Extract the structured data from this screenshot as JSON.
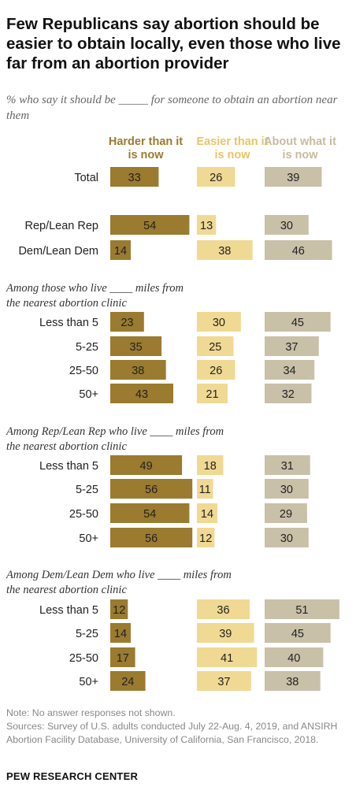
{
  "title": "Few Republicans say abortion should be easier to obtain locally, even those who live far from an abortion provider",
  "subtitle": "% who say it should be _____ for someone to obtain an abortion near them",
  "notes": {
    "note": "Note: No answer responses not shown.",
    "source": "Sources: Survey of U.S. adults conducted July 22-Aug. 4, 2019, and ANSIRH Abortion Facility Database, University of California, San Francisco, 2018."
  },
  "brand": "PEW RESEARCH CENTER",
  "chart_data": {
    "type": "bar",
    "orientation": "horizontal",
    "layout": "side-by-side panels",
    "series": [
      {
        "name": "Harder than it is now",
        "color": "#9a7b2f",
        "label_color": "#9a7b2f"
      },
      {
        "name": "Easier than it is now",
        "color": "#f0d993",
        "label_color": "#e8c565"
      },
      {
        "name": "About what it is now",
        "color": "#c9c0a8",
        "label_color": "#c6bc9f"
      }
    ],
    "groups": [
      {
        "heading": null,
        "rows": [
          {
            "label": "Total",
            "values": [
              33,
              26,
              39
            ]
          }
        ]
      },
      {
        "heading": null,
        "rows": [
          {
            "label": "Rep/Lean Rep",
            "values": [
              54,
              13,
              30
            ]
          },
          {
            "label": "Dem/Lean Dem",
            "values": [
              14,
              38,
              46
            ]
          }
        ]
      },
      {
        "heading": "Among those who live ____ miles from the nearest abortion clinic",
        "rows": [
          {
            "label": "Less than 5",
            "values": [
              23,
              30,
              45
            ]
          },
          {
            "label": "5-25",
            "values": [
              35,
              25,
              37
            ]
          },
          {
            "label": "25-50",
            "values": [
              38,
              26,
              34
            ]
          },
          {
            "label": "50+",
            "values": [
              43,
              21,
              32
            ]
          }
        ]
      },
      {
        "heading": "Among Rep/Lean Rep who live ____ miles from the nearest abortion clinic",
        "rows": [
          {
            "label": "Less than 5",
            "values": [
              49,
              18,
              31
            ]
          },
          {
            "label": "5-25",
            "values": [
              56,
              11,
              30
            ]
          },
          {
            "label": "25-50",
            "values": [
              54,
              14,
              29
            ]
          },
          {
            "label": "50+",
            "values": [
              56,
              12,
              30
            ]
          }
        ]
      },
      {
        "heading": "Among Dem/Lean Dem who live ____ miles from the nearest abortion clinic",
        "rows": [
          {
            "label": "Less than 5",
            "values": [
              12,
              36,
              51
            ]
          },
          {
            "label": "5-25",
            "values": [
              14,
              39,
              45
            ]
          },
          {
            "label": "25-50",
            "values": [
              17,
              41,
              40
            ]
          },
          {
            "label": "50+",
            "values": [
              24,
              37,
              38
            ]
          }
        ]
      }
    ]
  }
}
